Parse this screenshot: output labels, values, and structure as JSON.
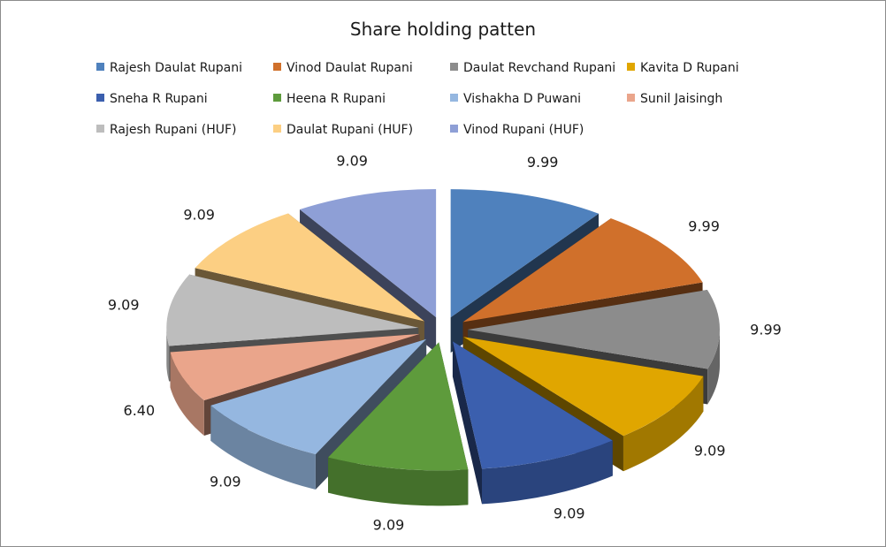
{
  "chart_data": {
    "type": "pie",
    "title": "Share holding patten",
    "style": "3d-exploded",
    "legend_position": "top",
    "labels": [
      "Rajesh Daulat Rupani",
      "Vinod Daulat Rupani",
      "Daulat Revchand Rupani",
      "Kavita D Rupani",
      "Sneha R Rupani",
      "Heena R Rupani",
      "Vishakha D Puwani",
      "Sunil Jaisingh",
      "Rajesh Rupani (HUF)",
      "Daulat Rupani (HUF)",
      "Vinod Rupani (HUF)"
    ],
    "values": [
      9.99,
      9.99,
      9.99,
      9.09,
      9.09,
      9.09,
      9.09,
      6.4,
      9.09,
      9.09,
      9.09
    ],
    "value_labels": [
      "9.99",
      "9.99",
      "9.99",
      "9.09",
      "9.09",
      "9.09",
      "9.09",
      "6.40",
      "9.09",
      "9.09",
      "9.09"
    ],
    "colors": [
      "#4f81bd",
      "#d0702b",
      "#8c8c8c",
      "#e0a600",
      "#3b5fae",
      "#5e9b3c",
      "#95b7e0",
      "#eaa58b",
      "#bdbdbd",
      "#fccf83",
      "#8e9fd6"
    ]
  }
}
